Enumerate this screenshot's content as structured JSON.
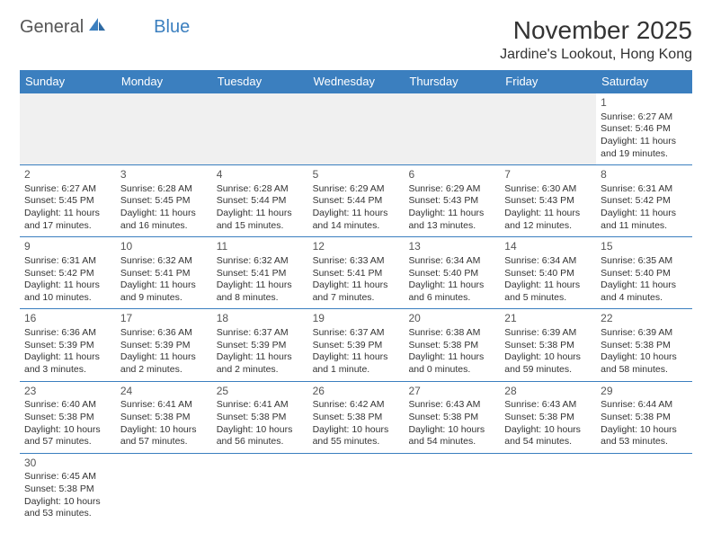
{
  "logo": {
    "text1": "General",
    "text2": "Blue"
  },
  "title": "November 2025",
  "location": "Jardine's Lookout, Hong Kong",
  "colors": {
    "header_bg": "#3b7fbf",
    "header_text": "#ffffff",
    "border": "#3b7fbf",
    "blank_bg": "#f0f0f0",
    "text": "#333333"
  },
  "weekdays": [
    "Sunday",
    "Monday",
    "Tuesday",
    "Wednesday",
    "Thursday",
    "Friday",
    "Saturday"
  ],
  "weeks": [
    [
      {
        "blank": true
      },
      {
        "blank": true
      },
      {
        "blank": true
      },
      {
        "blank": true
      },
      {
        "blank": true
      },
      {
        "blank": true
      },
      {
        "day": "1",
        "sunrise": "Sunrise: 6:27 AM",
        "sunset": "Sunset: 5:46 PM",
        "daylight": "Daylight: 11 hours and 19 minutes."
      }
    ],
    [
      {
        "day": "2",
        "sunrise": "Sunrise: 6:27 AM",
        "sunset": "Sunset: 5:45 PM",
        "daylight": "Daylight: 11 hours and 17 minutes."
      },
      {
        "day": "3",
        "sunrise": "Sunrise: 6:28 AM",
        "sunset": "Sunset: 5:45 PM",
        "daylight": "Daylight: 11 hours and 16 minutes."
      },
      {
        "day": "4",
        "sunrise": "Sunrise: 6:28 AM",
        "sunset": "Sunset: 5:44 PM",
        "daylight": "Daylight: 11 hours and 15 minutes."
      },
      {
        "day": "5",
        "sunrise": "Sunrise: 6:29 AM",
        "sunset": "Sunset: 5:44 PM",
        "daylight": "Daylight: 11 hours and 14 minutes."
      },
      {
        "day": "6",
        "sunrise": "Sunrise: 6:29 AM",
        "sunset": "Sunset: 5:43 PM",
        "daylight": "Daylight: 11 hours and 13 minutes."
      },
      {
        "day": "7",
        "sunrise": "Sunrise: 6:30 AM",
        "sunset": "Sunset: 5:43 PM",
        "daylight": "Daylight: 11 hours and 12 minutes."
      },
      {
        "day": "8",
        "sunrise": "Sunrise: 6:31 AM",
        "sunset": "Sunset: 5:42 PM",
        "daylight": "Daylight: 11 hours and 11 minutes."
      }
    ],
    [
      {
        "day": "9",
        "sunrise": "Sunrise: 6:31 AM",
        "sunset": "Sunset: 5:42 PM",
        "daylight": "Daylight: 11 hours and 10 minutes."
      },
      {
        "day": "10",
        "sunrise": "Sunrise: 6:32 AM",
        "sunset": "Sunset: 5:41 PM",
        "daylight": "Daylight: 11 hours and 9 minutes."
      },
      {
        "day": "11",
        "sunrise": "Sunrise: 6:32 AM",
        "sunset": "Sunset: 5:41 PM",
        "daylight": "Daylight: 11 hours and 8 minutes."
      },
      {
        "day": "12",
        "sunrise": "Sunrise: 6:33 AM",
        "sunset": "Sunset: 5:41 PM",
        "daylight": "Daylight: 11 hours and 7 minutes."
      },
      {
        "day": "13",
        "sunrise": "Sunrise: 6:34 AM",
        "sunset": "Sunset: 5:40 PM",
        "daylight": "Daylight: 11 hours and 6 minutes."
      },
      {
        "day": "14",
        "sunrise": "Sunrise: 6:34 AM",
        "sunset": "Sunset: 5:40 PM",
        "daylight": "Daylight: 11 hours and 5 minutes."
      },
      {
        "day": "15",
        "sunrise": "Sunrise: 6:35 AM",
        "sunset": "Sunset: 5:40 PM",
        "daylight": "Daylight: 11 hours and 4 minutes."
      }
    ],
    [
      {
        "day": "16",
        "sunrise": "Sunrise: 6:36 AM",
        "sunset": "Sunset: 5:39 PM",
        "daylight": "Daylight: 11 hours and 3 minutes."
      },
      {
        "day": "17",
        "sunrise": "Sunrise: 6:36 AM",
        "sunset": "Sunset: 5:39 PM",
        "daylight": "Daylight: 11 hours and 2 minutes."
      },
      {
        "day": "18",
        "sunrise": "Sunrise: 6:37 AM",
        "sunset": "Sunset: 5:39 PM",
        "daylight": "Daylight: 11 hours and 2 minutes."
      },
      {
        "day": "19",
        "sunrise": "Sunrise: 6:37 AM",
        "sunset": "Sunset: 5:39 PM",
        "daylight": "Daylight: 11 hours and 1 minute."
      },
      {
        "day": "20",
        "sunrise": "Sunrise: 6:38 AM",
        "sunset": "Sunset: 5:38 PM",
        "daylight": "Daylight: 11 hours and 0 minutes."
      },
      {
        "day": "21",
        "sunrise": "Sunrise: 6:39 AM",
        "sunset": "Sunset: 5:38 PM",
        "daylight": "Daylight: 10 hours and 59 minutes."
      },
      {
        "day": "22",
        "sunrise": "Sunrise: 6:39 AM",
        "sunset": "Sunset: 5:38 PM",
        "daylight": "Daylight: 10 hours and 58 minutes."
      }
    ],
    [
      {
        "day": "23",
        "sunrise": "Sunrise: 6:40 AM",
        "sunset": "Sunset: 5:38 PM",
        "daylight": "Daylight: 10 hours and 57 minutes."
      },
      {
        "day": "24",
        "sunrise": "Sunrise: 6:41 AM",
        "sunset": "Sunset: 5:38 PM",
        "daylight": "Daylight: 10 hours and 57 minutes."
      },
      {
        "day": "25",
        "sunrise": "Sunrise: 6:41 AM",
        "sunset": "Sunset: 5:38 PM",
        "daylight": "Daylight: 10 hours and 56 minutes."
      },
      {
        "day": "26",
        "sunrise": "Sunrise: 6:42 AM",
        "sunset": "Sunset: 5:38 PM",
        "daylight": "Daylight: 10 hours and 55 minutes."
      },
      {
        "day": "27",
        "sunrise": "Sunrise: 6:43 AM",
        "sunset": "Sunset: 5:38 PM",
        "daylight": "Daylight: 10 hours and 54 minutes."
      },
      {
        "day": "28",
        "sunrise": "Sunrise: 6:43 AM",
        "sunset": "Sunset: 5:38 PM",
        "daylight": "Daylight: 10 hours and 54 minutes."
      },
      {
        "day": "29",
        "sunrise": "Sunrise: 6:44 AM",
        "sunset": "Sunset: 5:38 PM",
        "daylight": "Daylight: 10 hours and 53 minutes."
      }
    ],
    [
      {
        "day": "30",
        "sunrise": "Sunrise: 6:45 AM",
        "sunset": "Sunset: 5:38 PM",
        "daylight": "Daylight: 10 hours and 53 minutes."
      },
      {
        "blank_white": true
      },
      {
        "blank_white": true
      },
      {
        "blank_white": true
      },
      {
        "blank_white": true
      },
      {
        "blank_white": true
      },
      {
        "blank_white": true
      }
    ]
  ]
}
